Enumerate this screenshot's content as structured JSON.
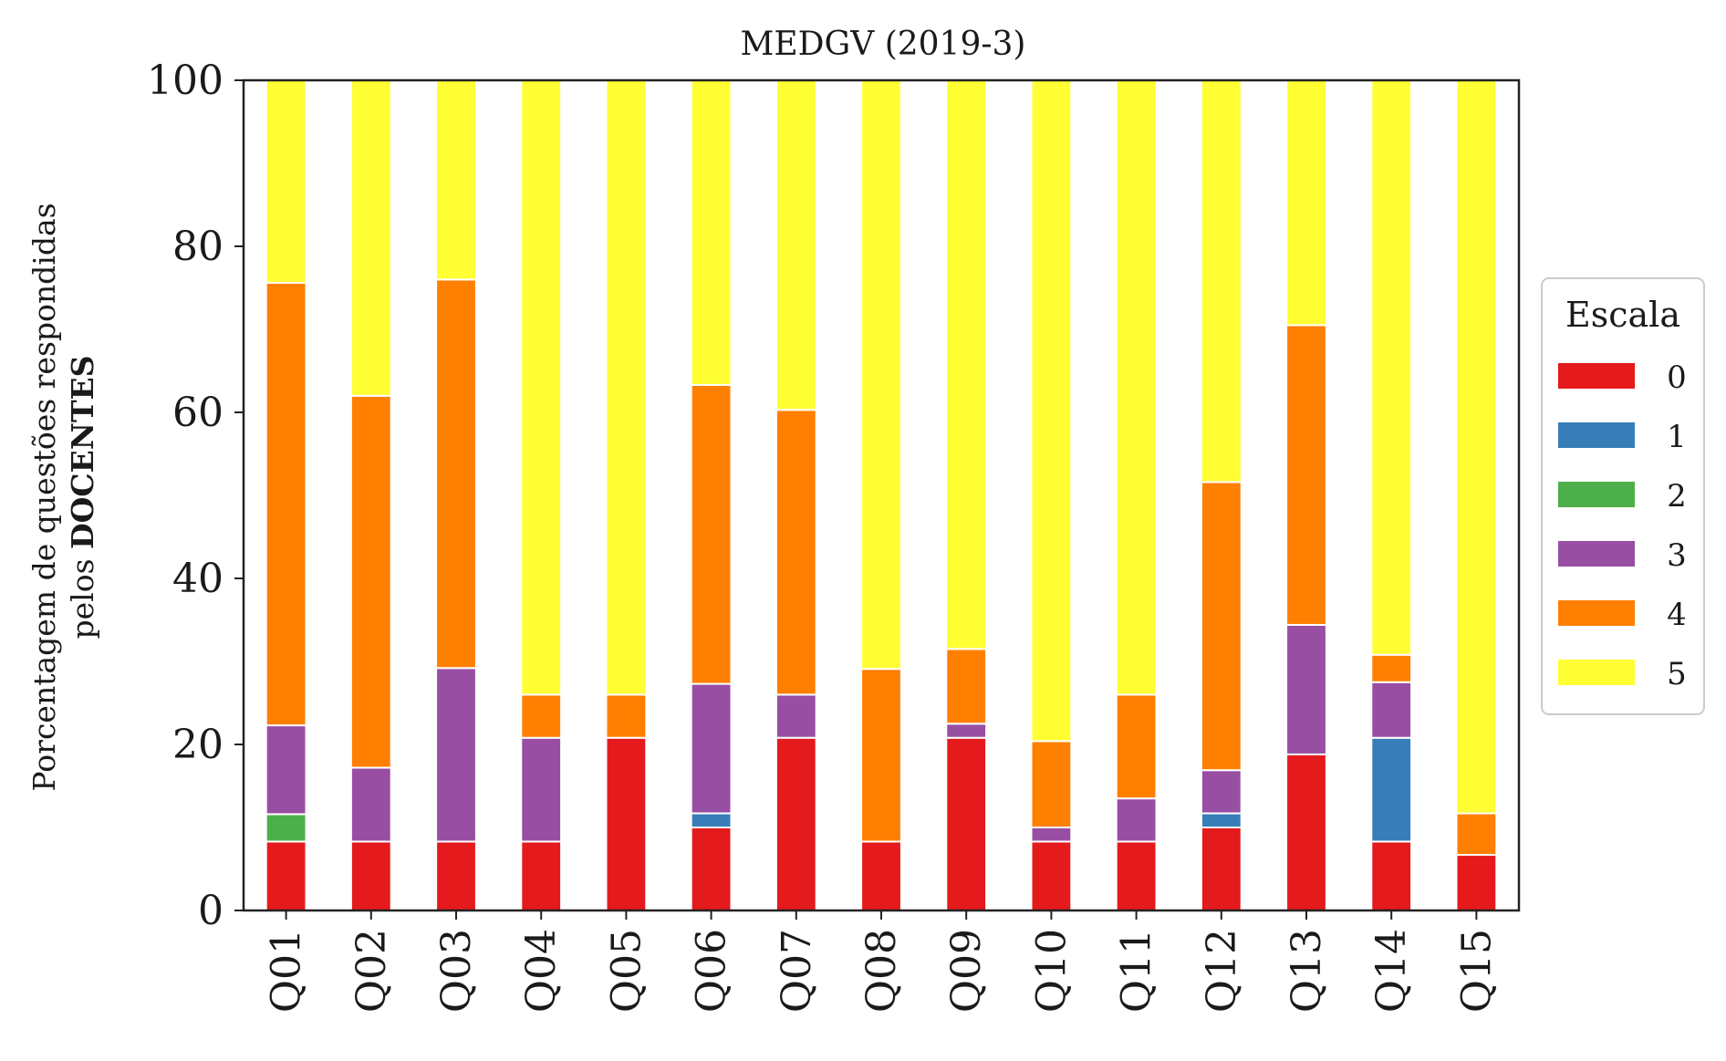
{
  "chart_data": {
    "type": "bar",
    "stacked": true,
    "title": "MEDGV (2019-3)",
    "ylabel_line1": "Porcentagem de questões respondidas",
    "ylabel_line2_prefix": "pelos ",
    "ylabel_line2_bold": "DOCENTES",
    "xlabel": "",
    "ylim": [
      0,
      100
    ],
    "yticks": [
      0,
      20,
      40,
      60,
      80,
      100
    ],
    "grid": false,
    "categories": [
      "Q01",
      "Q02",
      "Q03",
      "Q04",
      "Q05",
      "Q06",
      "Q07",
      "Q08",
      "Q09",
      "Q10",
      "Q11",
      "Q12",
      "Q13",
      "Q14",
      "Q15"
    ],
    "legend": {
      "title": "Escala",
      "placement": "center-right outside"
    },
    "series": [
      {
        "name": "0",
        "color": "#e41a1c",
        "values": [
          8.3,
          8.3,
          8.3,
          8.3,
          20.8,
          10.0,
          20.8,
          8.3,
          20.8,
          8.3,
          8.3,
          10.0,
          18.8,
          8.3,
          6.7
        ]
      },
      {
        "name": "1",
        "color": "#377eb8",
        "values": [
          0,
          0,
          0,
          0,
          0,
          1.7,
          0,
          0,
          0,
          0,
          0,
          1.7,
          0,
          12.5,
          0
        ]
      },
      {
        "name": "2",
        "color": "#4daf4a",
        "values": [
          3.3,
          0,
          0,
          0,
          0,
          0,
          0,
          0,
          0,
          0,
          0,
          0,
          0,
          0,
          0
        ]
      },
      {
        "name": "3",
        "color": "#984ea3",
        "values": [
          10.7,
          8.9,
          20.9,
          12.5,
          0,
          15.6,
          5.2,
          0,
          1.7,
          1.7,
          5.2,
          5.2,
          15.6,
          6.7,
          0
        ]
      },
      {
        "name": "4",
        "color": "#ff7f00",
        "values": [
          53.3,
          44.8,
          46.8,
          5.2,
          5.2,
          36.0,
          34.3,
          20.8,
          9.0,
          10.4,
          12.5,
          34.7,
          36.1,
          3.3,
          5.0
        ]
      },
      {
        "name": "5",
        "color": "#ffff33",
        "values": [
          24.4,
          38.0,
          24.0,
          74.0,
          74.0,
          36.7,
          39.7,
          70.9,
          68.5,
          79.6,
          74.0,
          48.4,
          29.5,
          69.2,
          88.3
        ]
      }
    ]
  }
}
